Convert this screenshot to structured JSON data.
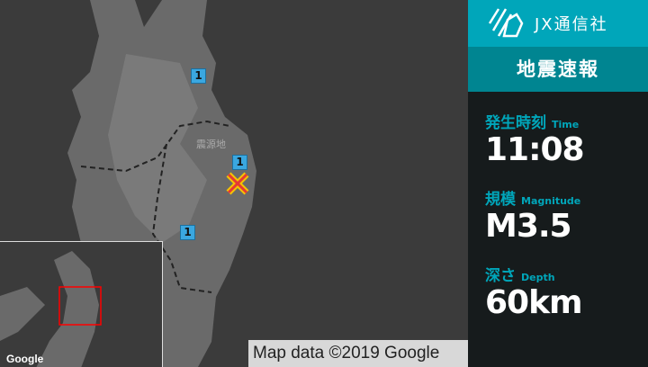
{
  "map": {
    "epicenter_label": "震源地",
    "intensity_badges": [
      "1",
      "1",
      "1"
    ],
    "google_logo": "Google",
    "attribution": "Map data ©2019 Google",
    "colors": {
      "epicenter": "#e53935",
      "epicenter_outline": "#f5c400",
      "badge": "#3aa7e0",
      "inset_box": "#ff0000"
    }
  },
  "panel": {
    "brand": "JX通信社",
    "title": "地震速報",
    "time": {
      "label": "発生時刻",
      "label_en": "Time",
      "value": "11:08"
    },
    "magnitude": {
      "label": "規模",
      "label_en": "Magnitude",
      "value": "M3.5"
    },
    "depth": {
      "label": "深さ",
      "label_en": "Depth",
      "value": "60km"
    },
    "colors": {
      "accent": "#00a6ba",
      "title_bg": "#008591",
      "bg": "#161b1c"
    }
  }
}
